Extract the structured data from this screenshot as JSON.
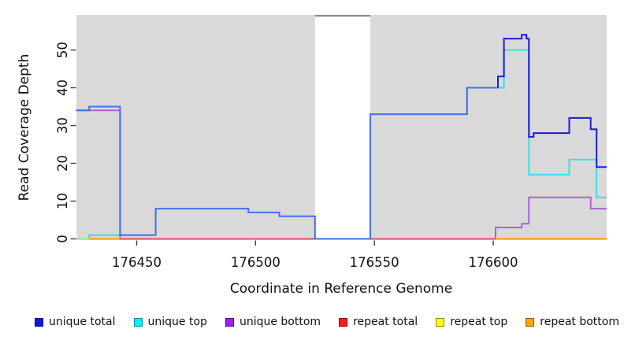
{
  "chart_data": {
    "type": "line",
    "subtype": "step",
    "title": "",
    "xlabel": "Coordinate in Reference Genome",
    "ylabel": "Read Coverage Depth",
    "x_ticks": [
      176450,
      176500,
      176550,
      176600
    ],
    "y_ticks": [
      0,
      10,
      20,
      30,
      40,
      50
    ],
    "x_range": [
      176424.5,
      176648
    ],
    "ylim": [
      0,
      59
    ],
    "grid": false,
    "legend_position": "bottom",
    "plot_background": "#d9d9d9",
    "gap_region": {
      "start": 176525,
      "end": 176548.3,
      "fill": "#ffffff",
      "top_border": "#8a8a8a"
    },
    "axis_tick_color": "#3c3c3c",
    "text_color": "#111111",
    "series": [
      {
        "name": "unique top",
        "line_color": "#3cdde6",
        "legend_fill": "#00f0ff",
        "legend_border": "#008b9b",
        "segments": [
          {
            "steps": [
              [
                176424.5,
                0
              ],
              [
                176430,
                1
              ]
            ],
            "end": 176443
          },
          {
            "steps": [
              [
                176548.3,
                33
              ],
              [
                176589,
                40
              ],
              [
                176604.5,
                50
              ],
              [
                176615,
                17
              ],
              [
                176632,
                21
              ],
              [
                176643.5,
                11
              ]
            ],
            "end": 176648
          }
        ]
      },
      {
        "name": "unique bottom",
        "line_color": "#ab5fd9",
        "legend_fill": "#a020f0",
        "legend_border": "#500a78",
        "segments": [
          {
            "steps": [
              [
                176424.5,
                34
              ],
              [
                176443,
                0
              ],
              [
                176601,
                3
              ],
              [
                176612,
                4
              ],
              [
                176615,
                11
              ],
              [
                176641,
                8
              ]
            ],
            "end": 176648
          }
        ]
      },
      {
        "name": "repeat total",
        "line_color": "#da5a7d",
        "legend_fill": "#ff1a1a",
        "legend_border": "#8b0000",
        "segments": [
          {
            "steps": [
              [
                176443,
                0
              ]
            ],
            "end": 176601
          }
        ]
      },
      {
        "name": "repeat top",
        "line_color": "#a9e3a0",
        "legend_fill": "#ffff1a",
        "legend_border": "#8b8b00",
        "segments": [
          {
            "steps": [
              [
                176424.5,
                0
              ]
            ],
            "end": 176430
          }
        ]
      },
      {
        "name": "repeat bottom",
        "line_color": "#ffa408",
        "legend_fill": "#ffa500",
        "legend_border": "#8b5a00",
        "segments": [
          {
            "steps": [
              [
                176430,
                0
              ]
            ],
            "end": 176443
          },
          {
            "steps": [
              [
                176601,
                0
              ]
            ],
            "end": 176648
          }
        ]
      },
      {
        "name": "unique total",
        "line_color": "#4370e6",
        "color_split": {
          "x": 176602,
          "color": "#1c1cd2"
        },
        "legend_fill": "#1515e6",
        "legend_border": "#00008b",
        "segments": [
          {
            "steps": [
              [
                176424.5,
                34
              ],
              [
                176430,
                35
              ],
              [
                176443,
                1
              ],
              [
                176458,
                8
              ],
              [
                176497,
                7
              ],
              [
                176510,
                6
              ],
              [
                176525,
                0
              ],
              [
                176548.3,
                33
              ],
              [
                176589,
                40
              ],
              [
                176602,
                43
              ],
              [
                176604.5,
                53
              ],
              [
                176612,
                54
              ],
              [
                176614,
                53
              ],
              [
                176615,
                27
              ],
              [
                176617,
                28
              ],
              [
                176632,
                32
              ],
              [
                176641,
                29
              ],
              [
                176643.5,
                19
              ]
            ],
            "end": 176648
          }
        ]
      }
    ],
    "legend_order": [
      "unique total",
      "unique top",
      "unique bottom",
      "repeat total",
      "repeat top",
      "repeat bottom"
    ]
  }
}
